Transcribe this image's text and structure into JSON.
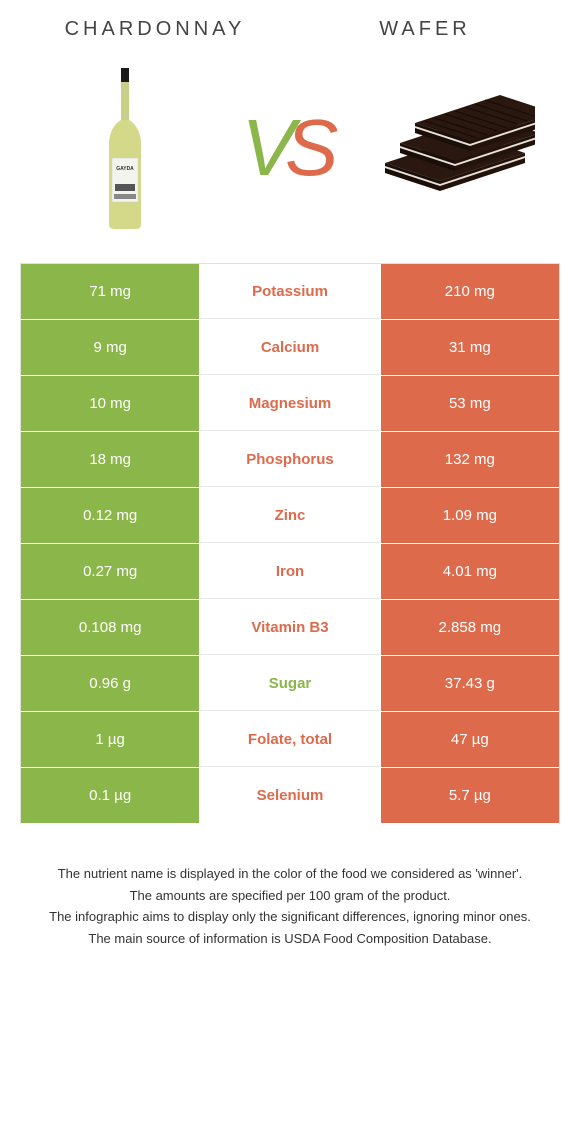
{
  "colors": {
    "green": "#8bb64a",
    "orange": "#dd6a4b",
    "white": "#ffffff",
    "text_dark": "#333333"
  },
  "header": {
    "left_title": "CHARDONNAY",
    "right_title": "WAFER"
  },
  "vs": {
    "v": "V",
    "s": "S"
  },
  "rows": [
    {
      "left": "71 mg",
      "mid": "Potassium",
      "right": "210 mg",
      "winner": "right"
    },
    {
      "left": "9 mg",
      "mid": "Calcium",
      "right": "31 mg",
      "winner": "right"
    },
    {
      "left": "10 mg",
      "mid": "Magnesium",
      "right": "53 mg",
      "winner": "right"
    },
    {
      "left": "18 mg",
      "mid": "Phosphorus",
      "right": "132 mg",
      "winner": "right"
    },
    {
      "left": "0.12 mg",
      "mid": "Zinc",
      "right": "1.09 mg",
      "winner": "right"
    },
    {
      "left": "0.27 mg",
      "mid": "Iron",
      "right": "4.01 mg",
      "winner": "right"
    },
    {
      "left": "0.108 mg",
      "mid": "Vitamin B3",
      "right": "2.858 mg",
      "winner": "right"
    },
    {
      "left": "0.96 g",
      "mid": "Sugar",
      "right": "37.43 g",
      "winner": "left"
    },
    {
      "left": "1 µg",
      "mid": "Folate, total",
      "right": "47 µg",
      "winner": "right"
    },
    {
      "left": "0.1 µg",
      "mid": "Selenium",
      "right": "5.7 µg",
      "winner": "right"
    }
  ],
  "footer": {
    "line1": "The nutrient name is displayed in the color of the food we considered as 'winner'.",
    "line2": "The amounts are specified per 100 gram of the product.",
    "line3": "The infographic aims to display only the significant differences, ignoring minor ones.",
    "line4": "The main source of information is USDA Food Composition Database."
  }
}
